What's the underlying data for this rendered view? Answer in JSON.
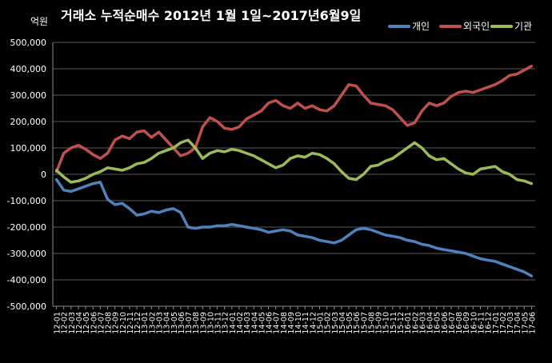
{
  "chart_data": {
    "type": "line",
    "title": "거래소 누적순매수 2012년 1월 1일~2017년6월9일",
    "unit_label": "억원",
    "ylim": [
      -500000,
      500000
    ],
    "y_ticks": [
      "-500,000",
      "-400,000",
      "-300,000",
      "-200,000",
      "-100,000",
      "0",
      "100,000",
      "200,000",
      "300,000",
      "400,000",
      "500,000"
    ],
    "y_tick_values": [
      -500000,
      -400000,
      -300000,
      -200000,
      -100000,
      0,
      100000,
      200000,
      300000,
      400000,
      500000
    ],
    "grid": true,
    "legend_position": "top-right",
    "x": [
      "12-01",
      "12-02",
      "12-03",
      "12-04",
      "12-05",
      "12-06",
      "12-07",
      "12-08",
      "12-09",
      "12-10",
      "12-11",
      "12-12",
      "13-01",
      "13-02",
      "13-03",
      "13-04",
      "13-05",
      "13-06",
      "13-07",
      "13-08",
      "13-09",
      "13-10",
      "13-11",
      "13-12",
      "14-01",
      "14-02",
      "14-03",
      "14-04",
      "14-05",
      "14-06",
      "14-07",
      "14-08",
      "14-09",
      "14-10",
      "14-11",
      "14-12",
      "15-01",
      "15-02",
      "15-03",
      "15-04",
      "15-05",
      "15-06",
      "15-07",
      "15-08",
      "15-09",
      "15-10",
      "15-11",
      "15-12",
      "16-01",
      "16-02",
      "16-03",
      "16-04",
      "16-05",
      "16-06",
      "16-07",
      "16-08",
      "16-09",
      "16-10",
      "16-11",
      "16-12",
      "17-01",
      "17-02",
      "17-03",
      "17-04",
      "17-05",
      "17-06"
    ],
    "series": [
      {
        "name": "개인",
        "color": "#4F81BD",
        "values": [
          -20000,
          -60000,
          -65000,
          -55000,
          -45000,
          -35000,
          -30000,
          -95000,
          -115000,
          -110000,
          -130000,
          -155000,
          -150000,
          -140000,
          -145000,
          -135000,
          -130000,
          -145000,
          -200000,
          -205000,
          -200000,
          -200000,
          -195000,
          -195000,
          -190000,
          -195000,
          -200000,
          -205000,
          -210000,
          -220000,
          -215000,
          -210000,
          -215000,
          -230000,
          -235000,
          -240000,
          -250000,
          -255000,
          -260000,
          -250000,
          -230000,
          -210000,
          -205000,
          -210000,
          -220000,
          -230000,
          -235000,
          -240000,
          -250000,
          -255000,
          -265000,
          -270000,
          -280000,
          -285000,
          -290000,
          -295000,
          -300000,
          -310000,
          -320000,
          -325000,
          -330000,
          -340000,
          -350000,
          -360000,
          -370000,
          -385000
        ]
      },
      {
        "name": "외국인",
        "color": "#C0504D",
        "values": [
          10000,
          80000,
          100000,
          110000,
          95000,
          75000,
          60000,
          80000,
          130000,
          145000,
          135000,
          160000,
          165000,
          140000,
          160000,
          130000,
          100000,
          70000,
          80000,
          100000,
          180000,
          215000,
          200000,
          175000,
          170000,
          180000,
          210000,
          225000,
          240000,
          270000,
          280000,
          260000,
          250000,
          270000,
          250000,
          260000,
          245000,
          240000,
          260000,
          300000,
          340000,
          335000,
          300000,
          270000,
          265000,
          260000,
          245000,
          215000,
          185000,
          195000,
          240000,
          270000,
          260000,
          270000,
          295000,
          310000,
          315000,
          310000,
          320000,
          330000,
          340000,
          355000,
          375000,
          380000,
          395000,
          410000
        ]
      },
      {
        "name": "기관",
        "color": "#9BBB59",
        "values": [
          15000,
          -10000,
          -30000,
          -25000,
          -15000,
          0,
          10000,
          25000,
          20000,
          15000,
          25000,
          40000,
          45000,
          60000,
          80000,
          90000,
          100000,
          120000,
          130000,
          100000,
          60000,
          80000,
          90000,
          85000,
          95000,
          90000,
          80000,
          70000,
          55000,
          40000,
          25000,
          35000,
          60000,
          70000,
          65000,
          80000,
          75000,
          60000,
          40000,
          10000,
          -15000,
          -20000,
          0,
          30000,
          35000,
          50000,
          60000,
          80000,
          100000,
          120000,
          100000,
          70000,
          55000,
          60000,
          40000,
          20000,
          5000,
          0,
          20000,
          25000,
          30000,
          10000,
          0,
          -20000,
          -25000,
          -35000
        ]
      }
    ]
  }
}
